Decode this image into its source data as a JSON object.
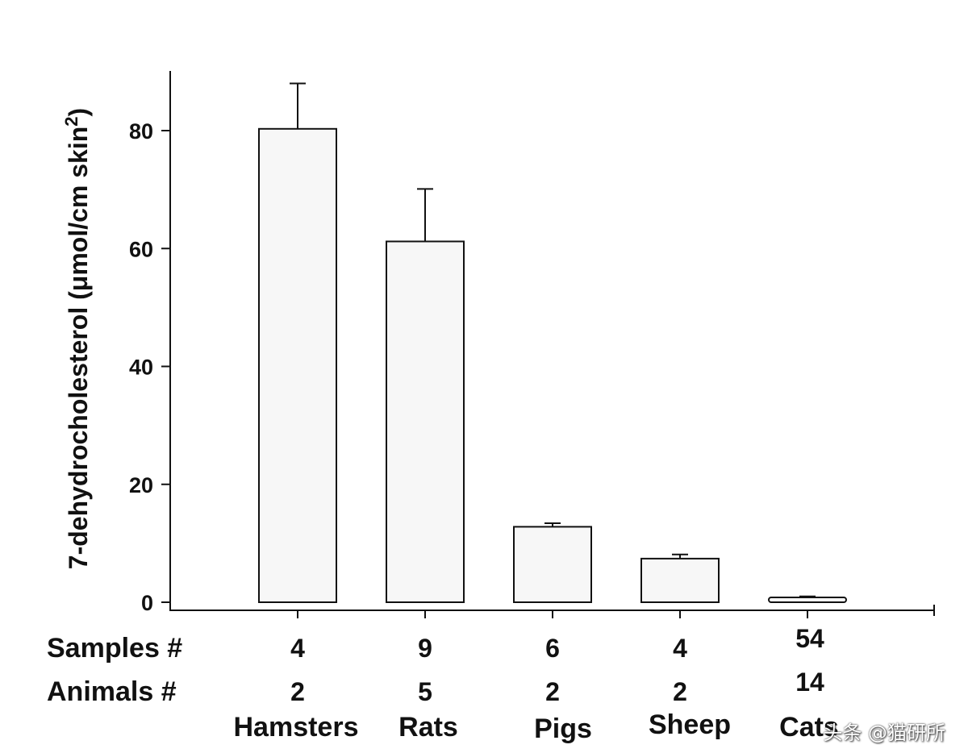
{
  "chart_data": {
    "type": "bar",
    "ylabel": "7-dehydrocholesterol (μmol/cm skin²)",
    "ylabel_main": "7-dehydrocholesterol (",
    "ylabel_unit": "μmol/cm skin",
    "ylabel_sup": "2",
    "ylabel_close": ")",
    "ylim": [
      0,
      90
    ],
    "yticks": [
      0,
      20,
      40,
      60,
      80
    ],
    "categories": [
      "Hamsters",
      "Rats",
      "Pigs",
      "Sheep",
      "Cats"
    ],
    "values": [
      80.3,
      61.2,
      12.8,
      7.4,
      0.8
    ],
    "error_upper": [
      88.0,
      70.1,
      13.4,
      8.1,
      1.0
    ],
    "bar_fill": "#f7f7f7",
    "rows": [
      {
        "label": "Samples  #",
        "values": [
          "4",
          "9",
          "6",
          "4",
          "54"
        ]
      },
      {
        "label": "Animals  #",
        "values": [
          "2",
          "5",
          "2",
          "2",
          "14"
        ]
      }
    ],
    "grid": false
  },
  "watermark": "头条 @猫研所"
}
